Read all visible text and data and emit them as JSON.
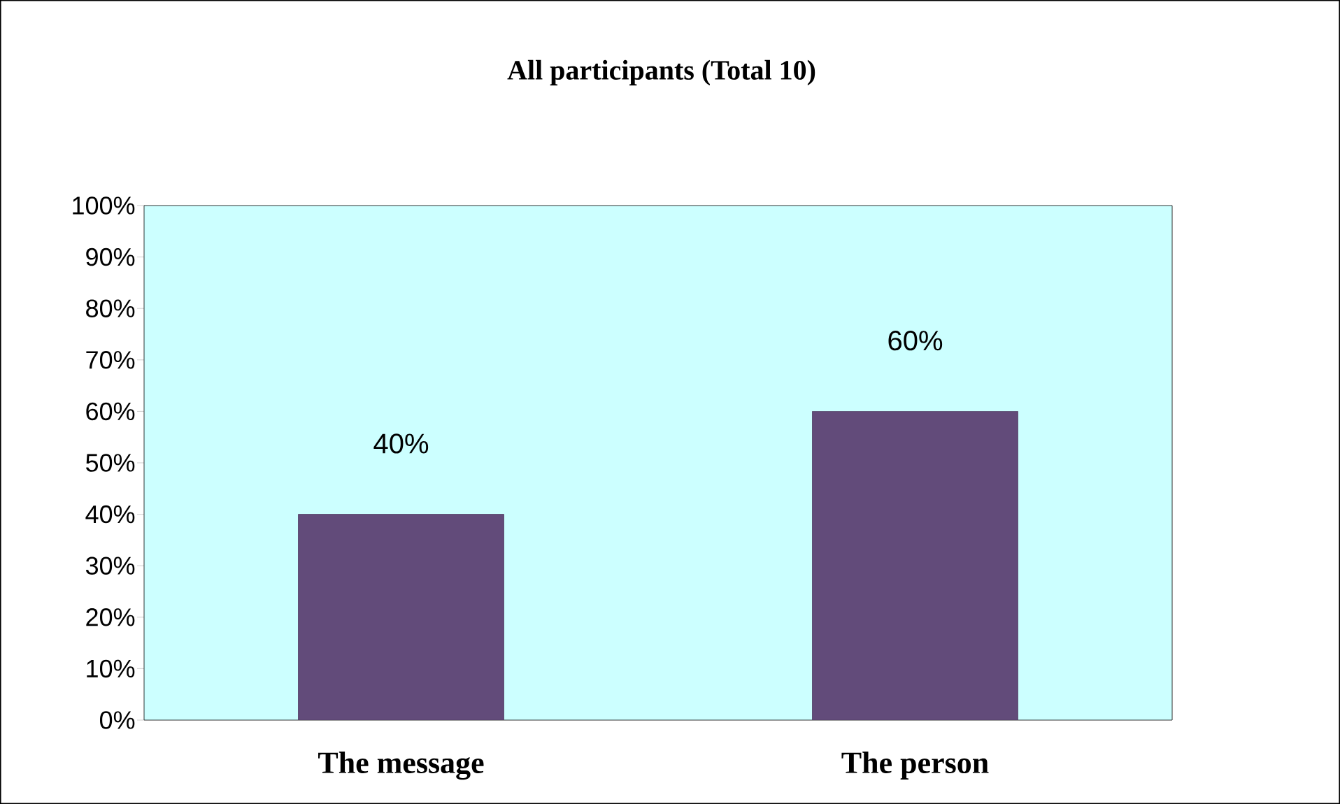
{
  "chart_data": {
    "type": "bar",
    "title": "All participants (Total 10)",
    "categories": [
      "The message",
      "The person"
    ],
    "values": [
      40,
      60
    ],
    "value_labels": [
      "40%",
      "60%"
    ],
    "color": "#624b7a",
    "ylim": [
      0,
      100
    ],
    "yticks": [
      {
        "value": 0,
        "label": "0%"
      },
      {
        "value": 10,
        "label": "10%"
      },
      {
        "value": 20,
        "label": "20%"
      },
      {
        "value": 30,
        "label": "30%"
      },
      {
        "value": 40,
        "label": "40%"
      },
      {
        "value": 50,
        "label": "50%"
      },
      {
        "value": 60,
        "label": "60%"
      },
      {
        "value": 70,
        "label": "70%"
      },
      {
        "value": 80,
        "label": "80%"
      },
      {
        "value": 90,
        "label": "90%"
      },
      {
        "value": 100,
        "label": "100%"
      }
    ]
  }
}
